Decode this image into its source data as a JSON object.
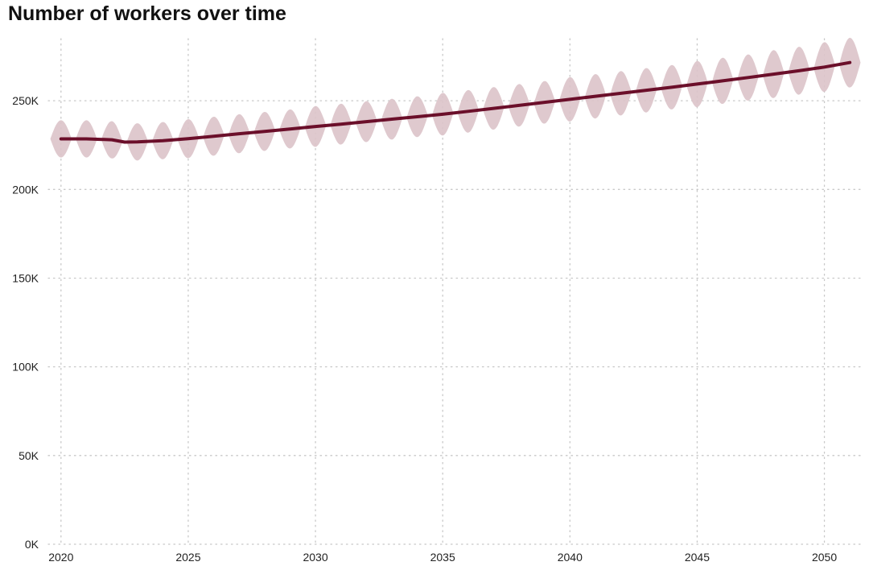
{
  "title": "Number of workers over time",
  "chart_data": {
    "type": "line",
    "title": "Number of workers over time",
    "xlabel": "",
    "ylabel": "",
    "xlim": [
      2019.5,
      2051.5
    ],
    "ylim": [
      0,
      285000
    ],
    "grid": true,
    "grid_style": "dotted",
    "x_ticks": [
      2020,
      2025,
      2030,
      2035,
      2040,
      2045,
      2050
    ],
    "x_tick_labels": [
      "2020",
      "2025",
      "2030",
      "2035",
      "2040",
      "2045",
      "2050"
    ],
    "y_ticks": [
      0,
      50000,
      100000,
      150000,
      200000,
      250000
    ],
    "y_tick_labels": [
      "0K",
      "50K",
      "100K",
      "150K",
      "200K",
      "250K"
    ],
    "colors": {
      "trend": "#6b0f2a",
      "band": "#dcc3c9",
      "grid": "#c8c8c8"
    },
    "series": [
      {
        "role": "trend",
        "x": [
          2020,
          2021,
          2022,
          2022.5,
          2023,
          2024,
          2025,
          2026,
          2027,
          2028,
          2029,
          2030,
          2031,
          2032,
          2033,
          2034,
          2035,
          2036,
          2037,
          2038,
          2039,
          2040,
          2041,
          2042,
          2043,
          2044,
          2045,
          2046,
          2047,
          2048,
          2049,
          2050,
          2051
        ],
        "y": [
          228500,
          228500,
          228000,
          226700,
          226800,
          227500,
          228600,
          230000,
          231400,
          232700,
          234100,
          235500,
          236800,
          238200,
          239600,
          241000,
          242400,
          244000,
          245700,
          247400,
          249100,
          250800,
          252500,
          254200,
          255900,
          257600,
          259400,
          261200,
          263100,
          265000,
          266900,
          269000,
          271500
        ]
      },
      {
        "role": "band",
        "x": [
          2020,
          2021,
          2022,
          2023,
          2024,
          2025,
          2026,
          2027,
          2028,
          2029,
          2030,
          2031,
          2032,
          2033,
          2034,
          2035,
          2036,
          2037,
          2038,
          2039,
          2040,
          2041,
          2042,
          2043,
          2044,
          2045,
          2046,
          2047,
          2048,
          2049,
          2050,
          2051
        ],
        "amplitude": [
          10500,
          10500,
          10500,
          10500,
          10500,
          11000,
          11000,
          11000,
          11000,
          11000,
          11500,
          11500,
          11500,
          11500,
          11500,
          12000,
          12000,
          12000,
          12000,
          12000,
          12500,
          12500,
          12500,
          12500,
          12500,
          13000,
          13000,
          13000,
          13500,
          13500,
          14000,
          14000
        ],
        "period_years": 1
      }
    ]
  }
}
